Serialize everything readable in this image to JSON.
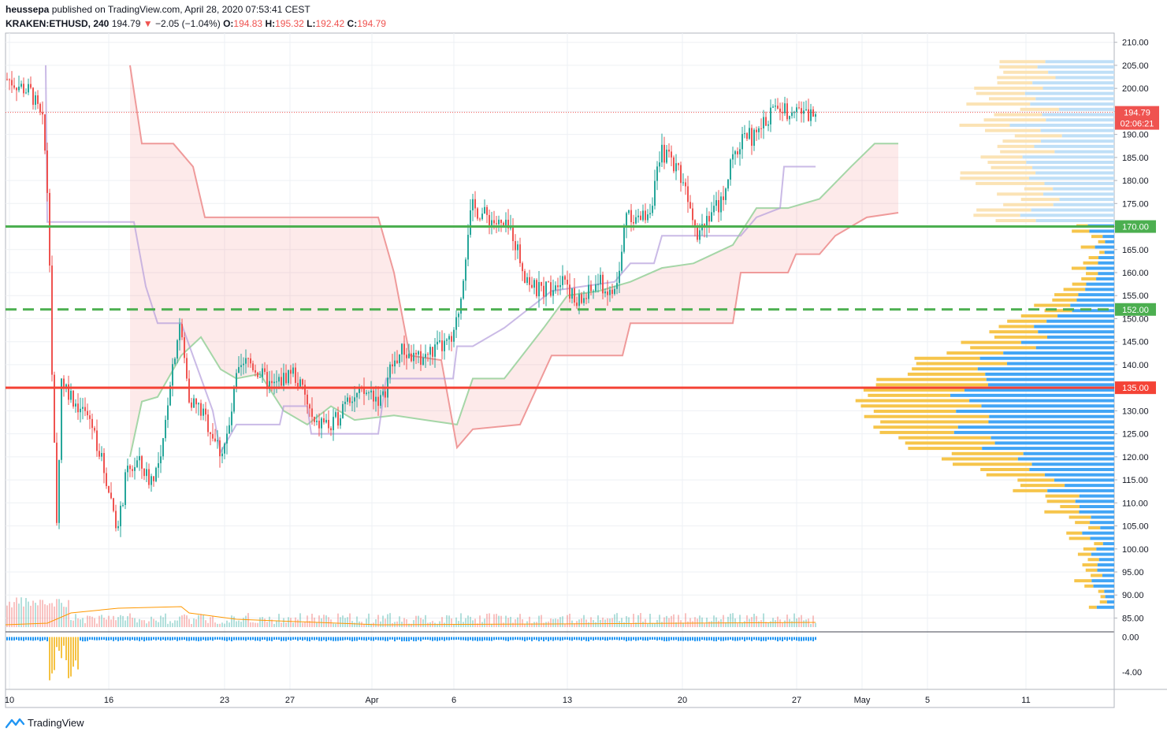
{
  "header": {
    "author": "heussepa",
    "published_text": "published on TradingView.com, April 28, 2020 07:53:41 CEST",
    "symbol": "KRAKEN:ETHUSD, 240",
    "last": "194.79",
    "change": "−2.05 (−1.04%)",
    "o_label": "O:",
    "o_value": "194.83",
    "h_label": "H:",
    "h_value": "195.32",
    "l_label": "L:",
    "l_value": "192.42",
    "c_label": "C:",
    "c_value": "194.79"
  },
  "footer": {
    "brand": "TradingView",
    "logo_icon": "tradingview-logo-icon"
  },
  "chart_data": {
    "type": "candlestick",
    "title": "",
    "price_axis": {
      "range": [
        82,
        212
      ],
      "ticks": [
        210,
        205,
        200,
        195,
        190,
        185,
        180,
        175,
        170,
        165,
        160,
        155,
        150,
        145,
        140,
        135,
        130,
        125,
        120,
        115,
        110,
        105,
        100,
        95,
        90,
        85
      ]
    },
    "oscillator_axis": {
      "range": [
        -6,
        0.5
      ],
      "ticks": [
        "0.00",
        "-4.00"
      ]
    },
    "time_axis": {
      "labels": [
        "10",
        "16",
        "23",
        "27",
        "Apr",
        "6",
        "13",
        "20",
        "27",
        "May",
        "5",
        "11"
      ]
    },
    "horizontal_levels": [
      {
        "price": 170,
        "label": "170.00",
        "color": "#4caf50",
        "style": "solid"
      },
      {
        "price": 152,
        "label": "152.00",
        "color": "#4caf50",
        "style": "dashed"
      },
      {
        "price": 135,
        "label": "135.00",
        "color": "#f44336",
        "style": "solid"
      }
    ],
    "last_price": {
      "price": 194.79,
      "label": "194.79",
      "countdown": "02:06:21",
      "color": "#ef5350"
    },
    "candles_anchor_path": [
      [
        10,
        202
      ],
      [
        40,
        199
      ],
      [
        55,
        192
      ],
      [
        62,
        172
      ],
      [
        66,
        138
      ],
      [
        72,
        105
      ],
      [
        78,
        137
      ],
      [
        95,
        132
      ],
      [
        115,
        128
      ],
      [
        125,
        122
      ],
      [
        145,
        108
      ],
      [
        150,
        104
      ],
      [
        160,
        116
      ],
      [
        175,
        119
      ],
      [
        190,
        115
      ],
      [
        205,
        119
      ],
      [
        215,
        136
      ],
      [
        228,
        149
      ],
      [
        240,
        133
      ],
      [
        255,
        130
      ],
      [
        270,
        125
      ],
      [
        280,
        121
      ],
      [
        290,
        125
      ],
      [
        300,
        137
      ],
      [
        315,
        141
      ],
      [
        330,
        138
      ],
      [
        345,
        135
      ],
      [
        360,
        137
      ],
      [
        370,
        139
      ],
      [
        385,
        134
      ],
      [
        400,
        126
      ],
      [
        410,
        128
      ],
      [
        420,
        126
      ],
      [
        430,
        129
      ],
      [
        440,
        134
      ],
      [
        450,
        133
      ],
      [
        470,
        134
      ],
      [
        485,
        132
      ],
      [
        495,
        139
      ],
      [
        510,
        143
      ],
      [
        530,
        141
      ],
      [
        550,
        143
      ],
      [
        575,
        145
      ],
      [
        585,
        155
      ],
      [
        595,
        171
      ],
      [
        600,
        174
      ],
      [
        620,
        172
      ],
      [
        635,
        170
      ],
      [
        650,
        169
      ],
      [
        665,
        160
      ],
      [
        680,
        156
      ],
      [
        700,
        157
      ],
      [
        715,
        160
      ],
      [
        730,
        153
      ],
      [
        745,
        155
      ],
      [
        760,
        158
      ],
      [
        775,
        155
      ],
      [
        785,
        158
      ],
      [
        795,
        174
      ],
      [
        810,
        171
      ],
      [
        825,
        174
      ],
      [
        840,
        186
      ],
      [
        855,
        184
      ],
      [
        865,
        181
      ],
      [
        875,
        176
      ],
      [
        885,
        169
      ],
      [
        900,
        173
      ],
      [
        915,
        175
      ],
      [
        925,
        182
      ],
      [
        935,
        186
      ],
      [
        945,
        191
      ],
      [
        955,
        189
      ],
      [
        965,
        191
      ],
      [
        975,
        194
      ],
      [
        985,
        196
      ],
      [
        1000,
        195
      ],
      [
        1010,
        197
      ],
      [
        1020,
        194
      ],
      [
        1035,
        194.8
      ]
    ],
    "volume_profile_note": "visible range volume profile on right side"
  }
}
